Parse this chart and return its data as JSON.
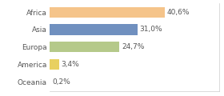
{
  "categories": [
    "Africa",
    "Asia",
    "Europa",
    "America",
    "Oceania"
  ],
  "values": [
    40.6,
    31.0,
    24.7,
    3.4,
    0.2
  ],
  "labels": [
    "40,6%",
    "31,0%",
    "24,7%",
    "3,4%",
    "0,2%"
  ],
  "bar_colors": [
    "#f5c48a",
    "#7090bf",
    "#b5c98a",
    "#e8d060",
    "#b0b0b0"
  ],
  "background_color": "#ffffff",
  "label_fontsize": 6.5,
  "tick_fontsize": 6.5,
  "xlim": [
    0,
    60
  ]
}
